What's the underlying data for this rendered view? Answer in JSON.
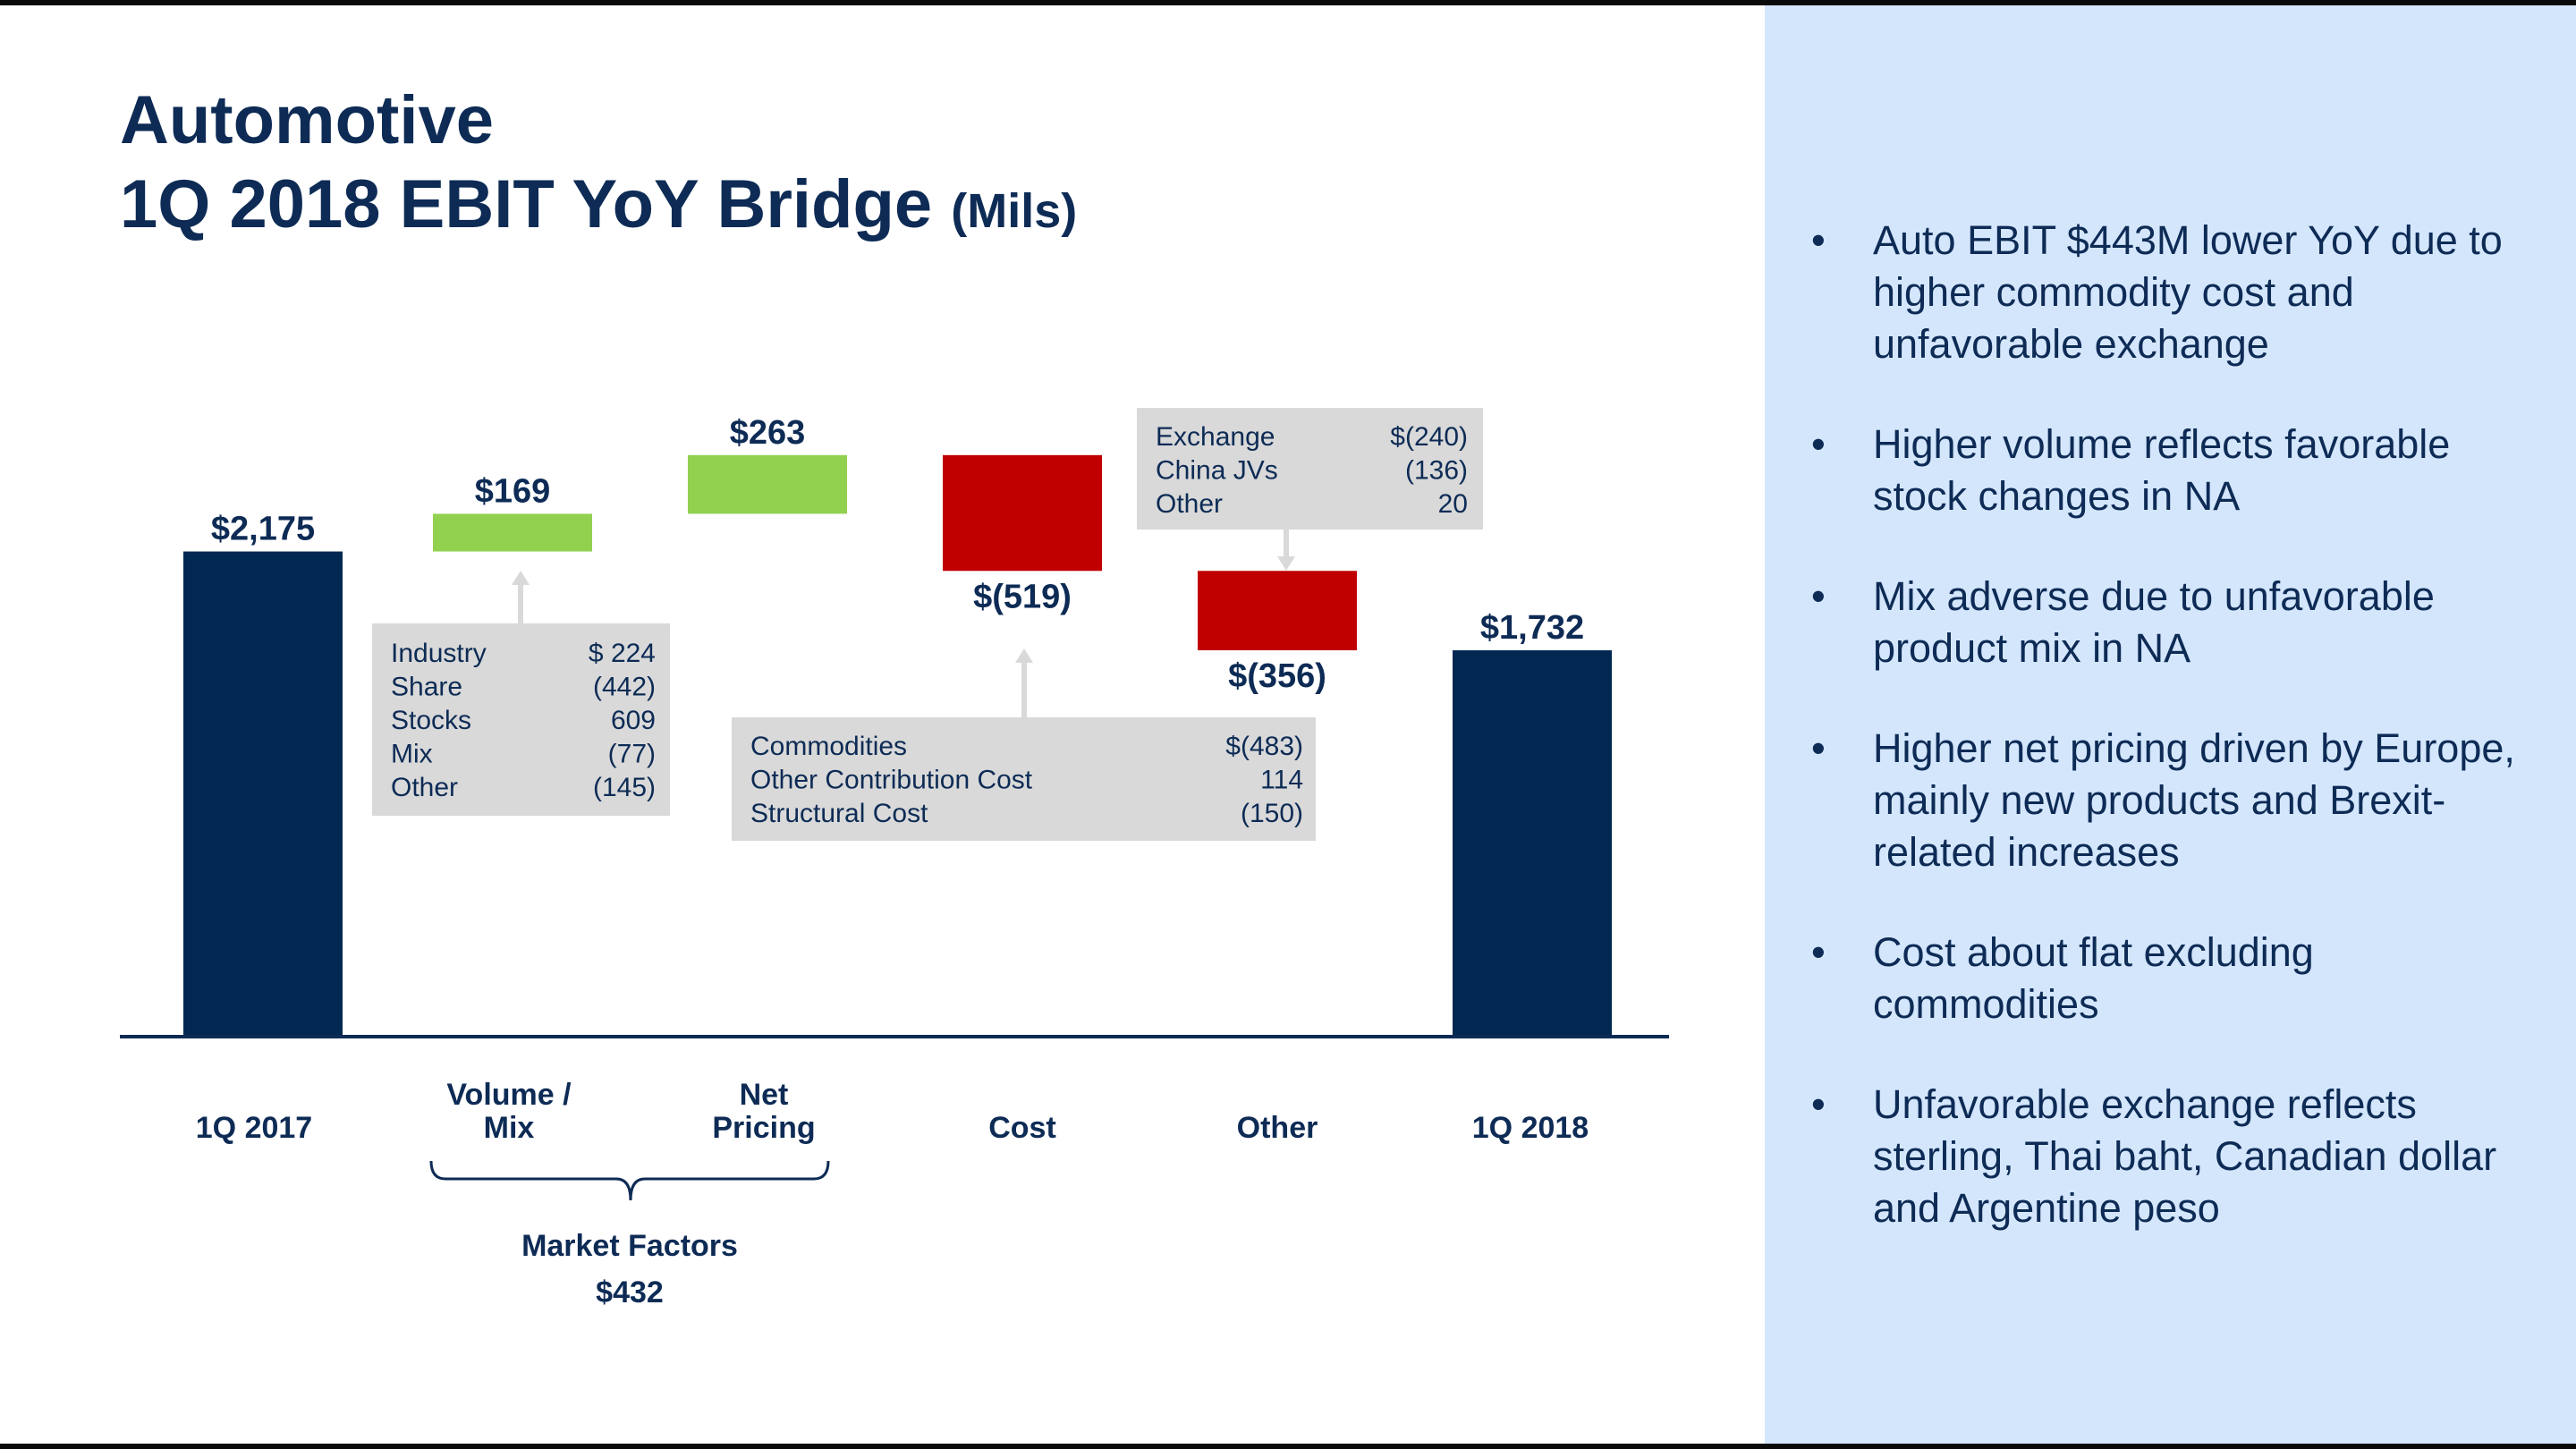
{
  "header": {
    "title_line1": "Automotive",
    "title_line2": "1Q 2018 EBIT YoY Bridge",
    "title_unit": "(Mils)"
  },
  "chart_data": {
    "type": "bar",
    "subtype": "waterfall",
    "title": "1Q 2018 EBIT YoY Bridge (Mils)",
    "categories": [
      "1Q 2017",
      "Volume / Mix",
      "Net Pricing",
      "Cost",
      "Other",
      "1Q 2018"
    ],
    "values": [
      2175,
      169,
      263,
      -519,
      -356,
      1732
    ],
    "value_labels": [
      "$2,175",
      "$169",
      "$263",
      "$(519)",
      "$(356)",
      "$1,732"
    ],
    "bar_kinds": [
      "total",
      "increase",
      "increase",
      "decrease",
      "decrease",
      "total"
    ],
    "colors": {
      "total": "#002850",
      "increase": "#92d050",
      "decrease": "#c00000",
      "axis": "#0d2b55",
      "callout": "#d9d9d9"
    },
    "group_bracket": {
      "label": "Market Factors",
      "value": "$432",
      "spans": [
        "Volume / Mix",
        "Net Pricing"
      ]
    },
    "callouts": [
      {
        "attached_to": "Volume / Mix",
        "rows": [
          {
            "label": "Industry",
            "value": "$ 224"
          },
          {
            "label": "Share",
            "value": "(442)"
          },
          {
            "label": "Stocks",
            "value": "609"
          },
          {
            "label": "Mix",
            "value": "(77)"
          },
          {
            "label": "Other",
            "value": "(145)"
          }
        ]
      },
      {
        "attached_to": "Cost",
        "rows": [
          {
            "label": "Commodities",
            "value": "$(483)"
          },
          {
            "label": "Other Contribution Cost",
            "value": "114"
          },
          {
            "label": "Structural Cost",
            "value": "(150)"
          }
        ]
      },
      {
        "attached_to": "Other",
        "rows": [
          {
            "label": "Exchange",
            "value": "$(240)"
          },
          {
            "label": "China JVs",
            "value": "(136)"
          },
          {
            "label": "Other",
            "value": "20"
          }
        ]
      }
    ]
  },
  "sidebar": {
    "bullets": [
      "Auto EBIT $443M lower YoY due to higher commodity cost and unfavorable exchange",
      "Higher volume reflects favorable stock changes in NA",
      "Mix adverse due to unfavorable product mix in NA",
      "Higher net pricing driven by Europe, mainly new products and Brexit-related increases",
      "Cost about flat excluding commodities",
      "Unfavorable exchange reflects sterling, Thai baht, Canadian dollar and Argentine peso"
    ]
  }
}
